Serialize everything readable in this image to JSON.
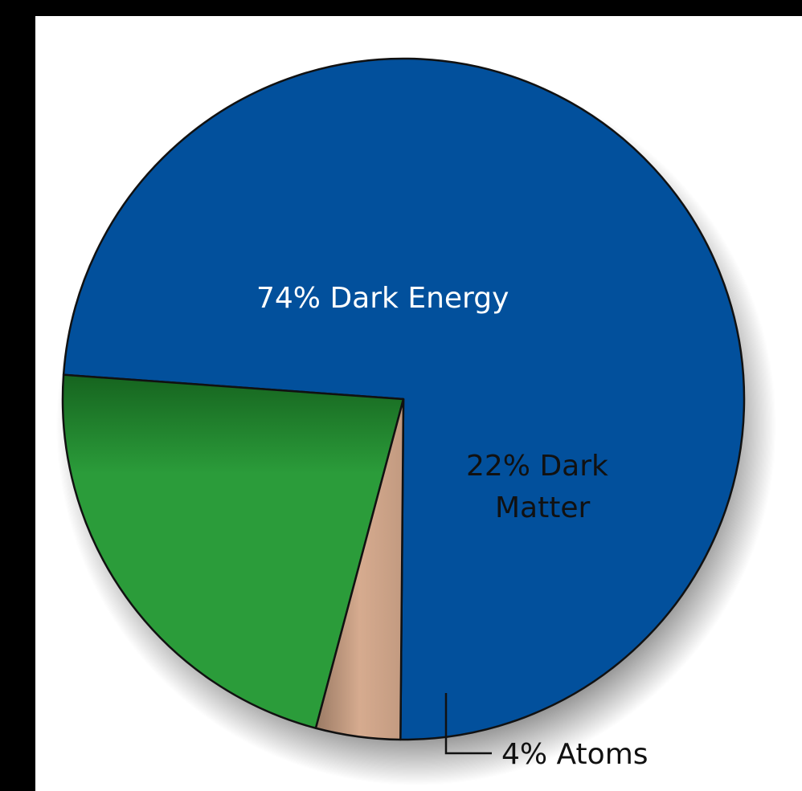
{
  "chart_data": {
    "type": "pie",
    "title": "",
    "slices": [
      {
        "name": "Dark Energy",
        "value": 74,
        "label_lines": [
          "74% Dark Energy"
        ],
        "color": "#02509c",
        "label_color": "#ffffff"
      },
      {
        "name": "Dark Matter",
        "value": 22,
        "label_lines": [
          "22% Dark",
          "Matter"
        ],
        "color": "#2b9c3a",
        "label_color": "#111111"
      },
      {
        "name": "Atoms",
        "value": 4,
        "label_lines": [
          "4% Atoms"
        ],
        "color": "#d6ab8f",
        "label_color": "#111111"
      }
    ],
    "start_angle_deg": 269.5,
    "direction": "counterclockwise"
  }
}
